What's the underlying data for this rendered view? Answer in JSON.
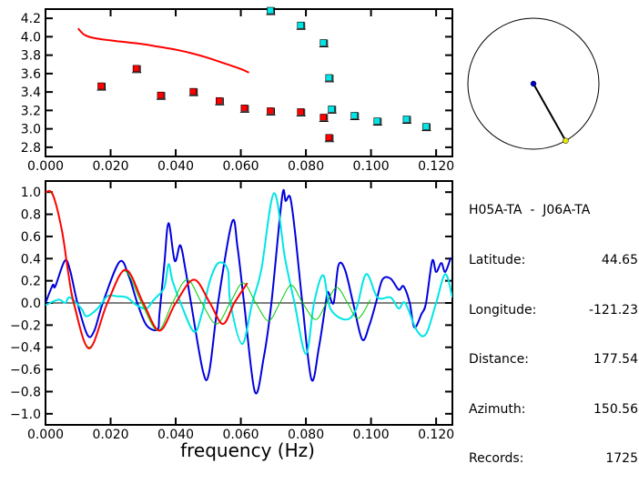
{
  "info": {
    "title": "H05A-TA  -  J06A-TA",
    "rows": [
      {
        "label": "Latitude:",
        "value": "44.65"
      },
      {
        "label": "Longitude:",
        "value": "-121.23"
      },
      {
        "label": "Distance:",
        "value": "177.54"
      },
      {
        "label": "Azimuth:",
        "value": "150.56"
      },
      {
        "label": "Records:",
        "value": "1725"
      }
    ]
  },
  "azimuth_dial": {
    "azimuth_deg": 150.56,
    "center_color": "#0000cc",
    "end_color": "#e8e800"
  },
  "chart_data": [
    {
      "type": "scatter",
      "xlabel": "",
      "ylabel": "",
      "xlim": [
        0,
        0.125
      ],
      "ylim": [
        2.7,
        4.3
      ],
      "xticks": [
        "0.000",
        "0.020",
        "0.040",
        "0.060",
        "0.080",
        "0.100",
        "0.120"
      ],
      "yticks": [
        "2.8",
        "3.0",
        "3.2",
        "3.4",
        "3.6",
        "3.8",
        "4.0",
        "4.2"
      ],
      "series": [
        {
          "kind": "line",
          "color": "#ff0000",
          "points": [
            [
              0.01,
              4.09
            ],
            [
              0.012,
              4.02
            ],
            [
              0.015,
              3.985
            ],
            [
              0.02,
              3.96
            ],
            [
              0.025,
              3.94
            ],
            [
              0.03,
              3.92
            ],
            [
              0.035,
              3.89
            ],
            [
              0.04,
              3.86
            ],
            [
              0.045,
              3.82
            ],
            [
              0.05,
              3.77
            ],
            [
              0.055,
              3.71
            ],
            [
              0.06,
              3.65
            ],
            [
              0.0625,
              3.61
            ]
          ]
        },
        {
          "kind": "markers",
          "color": "#ff0000",
          "points": [
            [
              0.0172,
              3.46
            ],
            [
              0.028,
              3.65
            ],
            [
              0.0355,
              3.36
            ],
            [
              0.0455,
              3.4
            ],
            [
              0.0535,
              3.3
            ],
            [
              0.0612,
              3.22
            ],
            [
              0.0692,
              3.19
            ],
            [
              0.0785,
              3.18
            ],
            [
              0.0855,
              3.12
            ],
            [
              0.0872,
              2.9
            ]
          ]
        },
        {
          "kind": "markers",
          "color": "#00e5e5",
          "points": [
            [
              0.0692,
              4.28
            ],
            [
              0.0785,
              4.12
            ],
            [
              0.0855,
              3.93
            ],
            [
              0.0872,
              3.55
            ],
            [
              0.088,
              3.21
            ],
            [
              0.095,
              3.14
            ],
            [
              0.102,
              3.08
            ],
            [
              0.111,
              3.1
            ],
            [
              0.117,
              3.02
            ]
          ]
        }
      ]
    },
    {
      "type": "line",
      "xlabel": "frequency (Hz)",
      "ylabel": "",
      "xlim": [
        0,
        0.125
      ],
      "ylim": [
        -1.1,
        1.1
      ],
      "xticks": [
        "0.000",
        "0.020",
        "0.040",
        "0.060",
        "0.080",
        "0.100",
        "0.120"
      ],
      "yticks": [
        "-1.0",
        "-0.8",
        "-0.6",
        "-0.4",
        "-0.2",
        "0.0",
        "0.2",
        "0.4",
        "0.6",
        "0.8",
        "1.0"
      ],
      "series": [
        {
          "color": "#0000dd",
          "width": 2,
          "points": [
            [
              0,
              0
            ],
            [
              0.0022,
              0.16
            ],
            [
              0.003,
              0.15
            ],
            [
              0.0059,
              0.38
            ],
            [
              0.0075,
              0.3
            ],
            [
              0.0098,
              0
            ],
            [
              0.0129,
              -0.29
            ],
            [
              0.015,
              -0.25
            ],
            [
              0.0176,
              0
            ],
            [
              0.0227,
              0.37
            ],
            [
              0.0255,
              0.25
            ],
            [
              0.0282,
              0
            ],
            [
              0.031,
              -0.2
            ],
            [
              0.0344,
              -0.24
            ],
            [
              0.035,
              -0.1
            ],
            [
              0.0365,
              0.35
            ],
            [
              0.0378,
              0.72
            ],
            [
              0.0397,
              0.38
            ],
            [
              0.0414,
              0.52
            ],
            [
              0.043,
              0.3
            ],
            [
              0.0447,
              0
            ],
            [
              0.0484,
              -0.62
            ],
            [
              0.0503,
              -0.62
            ],
            [
              0.053,
              0
            ],
            [
              0.0573,
              0.73
            ],
            [
              0.059,
              0.5
            ],
            [
              0.061,
              0
            ],
            [
              0.0643,
              -0.8
            ],
            [
              0.067,
              -0.5
            ],
            [
              0.0694,
              0
            ],
            [
              0.0727,
              0.96
            ],
            [
              0.0738,
              0.92
            ],
            [
              0.0752,
              0.95
            ],
            [
              0.0768,
              0.6
            ],
            [
              0.0789,
              0
            ],
            [
              0.0817,
              -0.69
            ],
            [
              0.084,
              -0.4
            ],
            [
              0.0861,
              0
            ],
            [
              0.0868,
              0.1
            ],
            [
              0.0885,
              0.0
            ],
            [
              0.09,
              0.34
            ],
            [
              0.092,
              0.3
            ],
            [
              0.0945,
              0
            ],
            [
              0.0973,
              -0.33
            ],
            [
              0.0995,
              -0.2
            ],
            [
              0.1015,
              0
            ],
            [
              0.1035,
              0.21
            ],
            [
              0.106,
              0.22
            ],
            [
              0.1085,
              0.12
            ],
            [
              0.11,
              0.15
            ],
            [
              0.1119,
              0
            ],
            [
              0.1133,
              -0.22
            ],
            [
              0.1155,
              -0.1
            ],
            [
              0.1169,
              0
            ],
            [
              0.1188,
              0.38
            ],
            [
              0.12,
              0.28
            ],
            [
              0.1216,
              0.36
            ],
            [
              0.1228,
              0.28
            ],
            [
              0.1245,
              0.41
            ]
          ]
        },
        {
          "color": "#00e5e5",
          "width": 2,
          "points": [
            [
              0,
              -0.02
            ],
            [
              0.004,
              0.03
            ],
            [
              0.006,
              0
            ],
            [
              0.0075,
              0.05
            ],
            [
              0.011,
              -0.05
            ],
            [
              0.0126,
              -0.12
            ],
            [
              0.016,
              -0.05
            ],
            [
              0.019,
              0.06
            ],
            [
              0.022,
              0.06
            ],
            [
              0.025,
              0.05
            ],
            [
              0.028,
              -0.02
            ],
            [
              0.031,
              -0.05
            ],
            [
              0.033,
              0.02
            ],
            [
              0.034,
              0.05
            ],
            [
              0.0365,
              0.14
            ],
            [
              0.0378,
              0.35
            ],
            [
              0.039,
              0.2
            ],
            [
              0.0415,
              0
            ],
            [
              0.0456,
              -0.26
            ],
            [
              0.048,
              -0.1
            ],
            [
              0.0505,
              0.2
            ],
            [
              0.0531,
              0.36
            ],
            [
              0.056,
              0.3
            ],
            [
              0.0568,
              0
            ],
            [
              0.0604,
              -0.37
            ],
            [
              0.0635,
              0
            ],
            [
              0.0663,
              0.3
            ],
            [
              0.0702,
              0.99
            ],
            [
              0.0736,
              0.4
            ],
            [
              0.0765,
              0
            ],
            [
              0.08,
              -0.46
            ],
            [
              0.0825,
              0
            ],
            [
              0.0853,
              0.25
            ],
            [
              0.0875,
              -0.05
            ],
            [
              0.0923,
              -0.15
            ],
            [
              0.0955,
              -0.05
            ],
            [
              0.0985,
              0.26
            ],
            [
              0.102,
              0.05
            ],
            [
              0.106,
              0.05
            ],
            [
              0.1085,
              -0.05
            ],
            [
              0.1105,
              0
            ],
            [
              0.1141,
              -0.25
            ],
            [
              0.1169,
              -0.28
            ],
            [
              0.12,
              0
            ],
            [
              0.1228,
              0.26
            ],
            [
              0.125,
              0.05
            ]
          ]
        },
        {
          "color": "#00cc00",
          "width": 1,
          "points": [
            [
              0,
              1.0
            ],
            [
              0.0022,
              0.97
            ],
            [
              0.005,
              0.66
            ],
            [
              0.007,
              0.27
            ],
            [
              0.0085,
              0
            ],
            [
              0.0134,
              -0.4
            ],
            [
              0.019,
              0
            ],
            [
              0.0242,
              0.29
            ],
            [
              0.0295,
              0
            ],
            [
              0.0345,
              -0.25
            ],
            [
              0.039,
              0
            ],
            [
              0.0435,
              0.21
            ],
            [
              0.048,
              0
            ],
            [
              0.0525,
              -0.19
            ],
            [
              0.0567,
              0
            ],
            [
              0.0607,
              0.18
            ],
            [
              0.0646,
              0
            ],
            [
              0.0685,
              -0.16
            ],
            [
              0.072,
              0
            ],
            [
              0.0755,
              0.16
            ],
            [
              0.079,
              0
            ],
            [
              0.083,
              -0.15
            ],
            [
              0.0863,
              0
            ],
            [
              0.0895,
              0.14
            ],
            [
              0.0928,
              0
            ],
            [
              0.096,
              -0.14
            ],
            [
              0.0998,
              0.03
            ]
          ]
        },
        {
          "color": "#ff0000",
          "width": 2,
          "points": [
            [
              0,
              1.0
            ],
            [
              0.0022,
              0.98
            ],
            [
              0.005,
              0.66
            ],
            [
              0.007,
              0.27
            ],
            [
              0.0087,
              0
            ],
            [
              0.0134,
              -0.41
            ],
            [
              0.019,
              0
            ],
            [
              0.0246,
              0.3
            ],
            [
              0.03,
              0
            ],
            [
              0.035,
              -0.25
            ],
            [
              0.04,
              0
            ],
            [
              0.0456,
              0.21
            ],
            [
              0.0505,
              0
            ],
            [
              0.0545,
              -0.19
            ],
            [
              0.058,
              0
            ],
            [
              0.062,
              0.18
            ]
          ]
        }
      ]
    }
  ]
}
